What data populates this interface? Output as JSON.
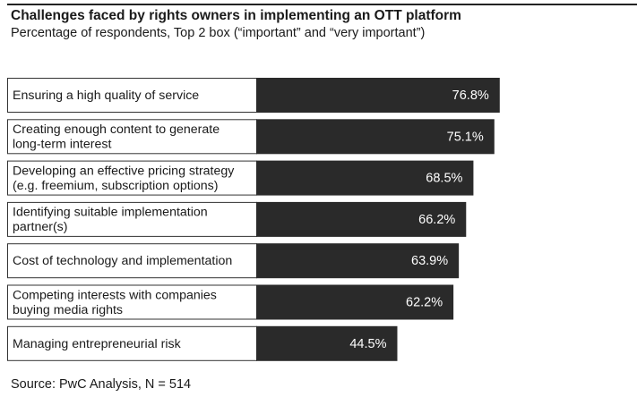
{
  "chart_data": {
    "type": "bar",
    "orientation": "horizontal",
    "title": "Challenges faced by rights owners in implementing an OTT platform",
    "subtitle": "Percentage of respondents, Top 2 box (“important” and “very important”)",
    "categories": [
      "Ensuring a high quality of service",
      "Creating enough content to generate long-term interest",
      "Developing an effective pricing strategy (e.g. freemium, subscription options)",
      "Identifying suitable implementation partner(s)",
      "Cost of technology and implementation",
      "Competing interests with companies buying media rights",
      "Managing entrepreneurial risk"
    ],
    "category_lines": [
      [
        "Ensuring a high quality of service"
      ],
      [
        "Creating enough content to generate",
        "long-term interest"
      ],
      [
        "Developing an effective pricing strategy",
        "(e.g. freemium, subscription options)"
      ],
      [
        "Identifying suitable implementation",
        "partner(s)"
      ],
      [
        "Cost of technology and implementation"
      ],
      [
        "Competing interests with companies",
        "buying media rights"
      ],
      [
        "Managing entrepreneurial risk"
      ]
    ],
    "values": [
      76.8,
      75.1,
      68.5,
      66.2,
      63.9,
      62.2,
      44.5
    ],
    "value_labels": [
      "76.8%",
      "75.1%",
      "68.5%",
      "66.2%",
      "63.9%",
      "62.2%",
      "44.5%"
    ],
    "bar_color": "#2a2a2a",
    "label_color": "#ffffff",
    "xlim": [
      0,
      100
    ]
  },
  "source": "Source: PwC Analysis, N = 514"
}
